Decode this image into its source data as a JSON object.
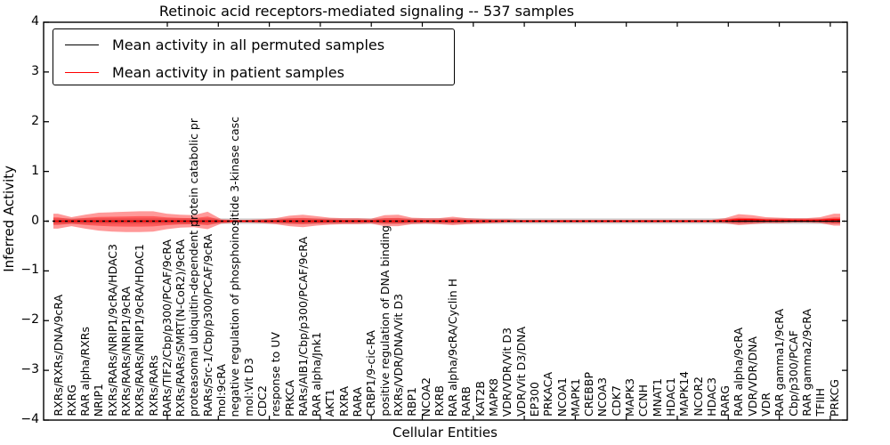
{
  "figure": {
    "title": "Retinoic acid receptors-mediated signaling -- 537 samples"
  },
  "chart_data": {
    "type": "line",
    "title": "Retinoic acid receptors-mediated signaling -- 537 samples",
    "xlabel": "Cellular Entities",
    "ylabel": "Inferred Activity",
    "ylim": [
      -4,
      4
    ],
    "ytick_labels": [
      "4",
      "3",
      "2",
      "1",
      "0",
      "−1",
      "−2",
      "−3",
      "−4"
    ],
    "ytick_values": [
      4,
      3,
      2,
      1,
      0,
      -1,
      -2,
      -3,
      -4
    ],
    "grid": false,
    "legend_position": "upper left",
    "legend": [
      {
        "label": "Mean activity in all permuted samples",
        "color": "#000000"
      },
      {
        "label": "Mean activity in patient samples",
        "color": "#ff0000"
      }
    ],
    "categories": [
      "RXRs/RXRs/DNA/9cRA",
      "RXRG",
      "RAR alpha/RXRs",
      "NRIP1",
      "RXRs/RARs/NRIP1/9cRA/HDAC3",
      "RXRs/RARs/NRIP1/9cRA",
      "RXRs/RARs/NRIP1/9cRA/HDAC1",
      "RXRs/RARs",
      "RARs/TIF2/Cbp/p300/PCAF/9cRA",
      "RXRs/RARs/SMRT(N-CoR2)/9cRA",
      "proteasomal ubiquitin-dependent protein catabolic pr",
      "RARs/Src-1/Cbp/p300/PCAF/9cRA",
      "mol:9cRA",
      "negative regulation of phosphoinositide 3-kinase casc",
      "mol:Vit D3",
      "CDC2",
      "response to UV",
      "PRKCA",
      "RARs/AIB1/Cbp/p300/PCAF/9cRA",
      "RAR alpha/Jnk1",
      "AKT1",
      "RXRA",
      "RARA",
      "CRBP1/9-cic-RA",
      "positive regulation of DNA binding",
      "RXRs/VDR/DNA/Vit D3",
      "RBP1",
      "NCOA2",
      "RXRB",
      "RAR alpha/9cRA/Cyclin H",
      "RARB",
      "KAT2B",
      "MAPK8",
      "VDR/VDR/Vit D3",
      "VDR/Vit D3/DNA",
      "EP300",
      "PRKACA",
      "NCOA1",
      "MAPK1",
      "CREBBP",
      "NCOA3",
      "CDK7",
      "MAPK3",
      "CCNH",
      "MNAT1",
      "HDAC1",
      "MAPK14",
      "NCOR2",
      "HDAC3",
      "RARG",
      "RAR alpha/9cRA",
      "VDR/VDR/DNA",
      "VDR",
      "RAR gamma1/9cRA",
      "Cbp/p300/PCAF",
      "RAR gamma2/9cRA",
      "TFIIH",
      "PRKCG"
    ],
    "series": [
      {
        "name": "Mean activity in all permuted samples",
        "color": "#000000",
        "values": [
          0,
          0,
          0,
          0,
          0,
          0,
          0,
          0,
          0,
          0,
          0,
          0,
          0,
          0,
          0,
          0,
          0,
          0,
          0,
          0,
          0,
          0,
          0,
          0,
          0,
          0,
          0,
          0,
          0,
          0,
          0,
          0,
          0,
          0,
          0,
          0,
          0,
          0,
          0,
          0,
          0,
          0,
          0,
          0,
          0,
          0,
          0,
          0,
          0,
          0,
          0,
          0,
          0,
          0,
          0,
          0,
          0,
          0
        ]
      },
      {
        "name": "Mean activity in patient samples",
        "color": "#ff0000",
        "values": [
          0,
          0,
          0,
          0,
          0,
          0,
          0,
          0,
          0,
          0,
          0,
          0,
          0,
          0,
          0,
          0,
          0,
          0,
          0,
          0,
          0,
          0,
          0,
          0,
          0,
          0,
          0,
          0,
          0,
          0,
          0,
          0,
          0,
          0,
          0,
          0,
          0,
          0,
          0,
          0,
          0,
          0,
          0,
          0,
          0,
          0,
          0,
          0,
          0,
          0.01,
          0.03,
          0.03,
          0.02,
          0.02,
          0.02,
          0.02,
          0.02,
          0.03
        ]
      }
    ],
    "patient_band": {
      "color": "#ff0000",
      "opacity": 0.4,
      "upper": [
        0.15,
        0.08,
        0.13,
        0.17,
        0.18,
        0.19,
        0.2,
        0.2,
        0.15,
        0.13,
        0.12,
        0.19,
        0.04,
        0.03,
        0.03,
        0.04,
        0.06,
        0.11,
        0.13,
        0.1,
        0.07,
        0.06,
        0.06,
        0.05,
        0.12,
        0.13,
        0.07,
        0.06,
        0.06,
        0.09,
        0.06,
        0.05,
        0.04,
        0.04,
        0.03,
        0.03,
        0.03,
        0.03,
        0.03,
        0.03,
        0.03,
        0.03,
        0.03,
        0.03,
        0.03,
        0.03,
        0.03,
        0.03,
        0.03,
        0.06,
        0.14,
        0.12,
        0.08,
        0.07,
        0.06,
        0.06,
        0.08,
        0.15
      ],
      "lower": [
        0.15,
        0.1,
        0.15,
        0.19,
        0.21,
        0.22,
        0.22,
        0.21,
        0.16,
        0.13,
        0.12,
        0.16,
        0.05,
        0.03,
        0.03,
        0.04,
        0.06,
        0.1,
        0.12,
        0.09,
        0.07,
        0.06,
        0.06,
        0.05,
        0.1,
        0.1,
        0.06,
        0.05,
        0.06,
        0.08,
        0.06,
        0.05,
        0.04,
        0.03,
        0.03,
        0.03,
        0.03,
        0.03,
        0.03,
        0.03,
        0.03,
        0.03,
        0.03,
        0.03,
        0.03,
        0.03,
        0.03,
        0.03,
        0.03,
        0.04,
        0.08,
        0.06,
        0.04,
        0.04,
        0.03,
        0.03,
        0.04,
        0.09
      ]
    },
    "permuted_band": {
      "color": "#b0b0b0",
      "opacity": 0.45,
      "halfwidth": 0.06
    },
    "zero_line_style": "dotted"
  }
}
